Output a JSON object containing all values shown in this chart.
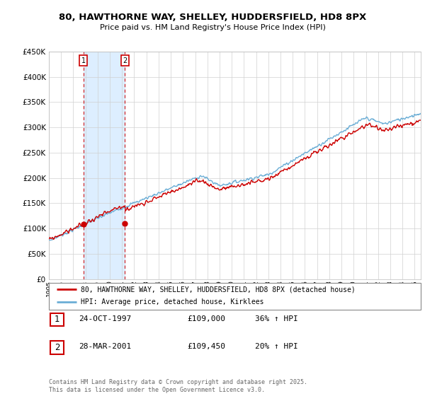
{
  "title_line1": "80, HAWTHORNE WAY, SHELLEY, HUDDERSFIELD, HD8 8PX",
  "title_line2": "Price paid vs. HM Land Registry's House Price Index (HPI)",
  "background_color": "#ffffff",
  "plot_bg_color": "#ffffff",
  "grid_color": "#d0d0d0",
  "purchase1_date": 1997.82,
  "purchase1_price": 109000,
  "purchase2_date": 2001.24,
  "purchase2_price": 109450,
  "legend_line1": "80, HAWTHORNE WAY, SHELLEY, HUDDERSFIELD, HD8 8PX (detached house)",
  "legend_line2": "HPI: Average price, detached house, Kirklees",
  "table_row1": [
    "1",
    "24-OCT-1997",
    "£109,000",
    "36% ↑ HPI"
  ],
  "table_row2": [
    "2",
    "28-MAR-2001",
    "£109,450",
    "20% ↑ HPI"
  ],
  "footer": "Contains HM Land Registry data © Crown copyright and database right 2025.\nThis data is licensed under the Open Government Licence v3.0.",
  "hpi_color": "#6baed6",
  "price_color": "#cc0000",
  "label_box_color": "#cc0000",
  "span_color": "#ddeeff",
  "ylim": [
    0,
    450000
  ],
  "xlim_start": 1995.0,
  "xlim_end": 2025.5,
  "yticks": [
    0,
    50000,
    100000,
    150000,
    200000,
    250000,
    300000,
    350000,
    400000,
    450000
  ]
}
